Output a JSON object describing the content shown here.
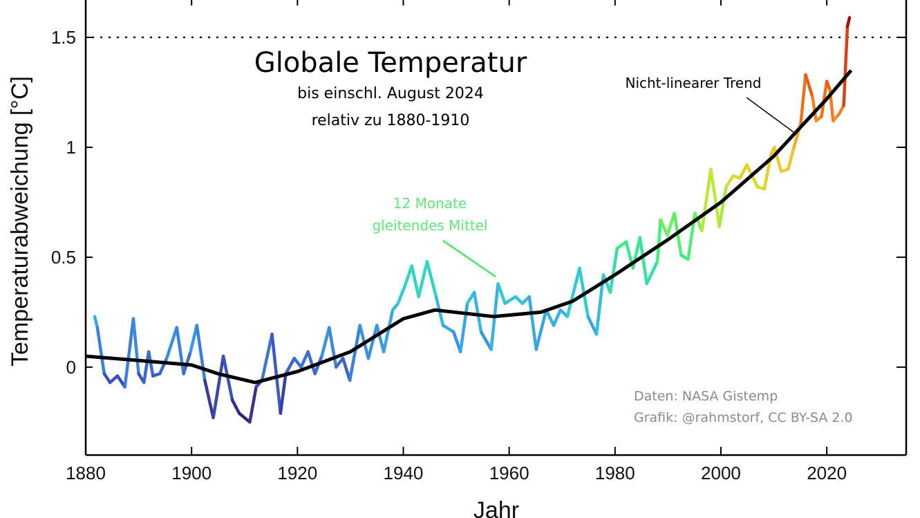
{
  "chart_data": {
    "type": "line",
    "title": "Globale Temperatur",
    "subtitle": [
      "bis einschl. August 2024",
      "relativ zu 1880-1910"
    ],
    "xlabel": "Jahr",
    "ylabel": "Temperaturabweichung [°C]",
    "xlim": [
      1880,
      2035
    ],
    "ylim": [
      -0.4,
      1.67
    ],
    "xticks": [
      1880,
      1900,
      1920,
      1940,
      1960,
      1980,
      2000,
      2020
    ],
    "yticks": [
      0,
      0.5,
      1,
      1.5
    ],
    "ytick_labels": [
      "0",
      "0.5",
      "1",
      "1.5"
    ],
    "grid": false,
    "reference_line": {
      "y": 1.5,
      "style": "dotted",
      "color": "#000000"
    },
    "colormap": [
      "#2b1a5a",
      "#3b4fc0",
      "#3a9fe8",
      "#2fd0d0",
      "#3ff07a",
      "#c8e830",
      "#f5c030",
      "#f07820",
      "#d83010",
      "#8a0a0a"
    ],
    "series": [
      {
        "name": "12 Monate gleitendes Mittel",
        "x": [
          1881.7,
          1882.2,
          1883.5,
          1884.6,
          1886,
          1887.4,
          1889,
          1890,
          1891,
          1891.9,
          1892.7,
          1894,
          1895.3,
          1897.2,
          1898.5,
          1899.8,
          1901,
          1902.5,
          1904.1,
          1906,
          1907.7,
          1909,
          1911,
          1912.2,
          1913.3,
          1915.2,
          1916.8,
          1917.8,
          1919.4,
          1920.7,
          1922,
          1923.3,
          1924.6,
          1926,
          1927.3,
          1928.6,
          1929.9,
          1931.8,
          1933.4,
          1935,
          1936.3,
          1938,
          1939,
          1940.3,
          1941.6,
          1942.9,
          1944.5,
          1946.2,
          1947.5,
          1949.5,
          1950.8,
          1952.1,
          1953.4,
          1954.7,
          1956.6,
          1957.9,
          1959.2,
          1961.2,
          1962.5,
          1963.8,
          1965.1,
          1967,
          1968.4,
          1969.7,
          1971,
          1973.3,
          1974.9,
          1976.5,
          1977.8,
          1979.1,
          1980.4,
          1982.1,
          1983.4,
          1984.7,
          1986,
          1988,
          1988.6,
          1989.9,
          1991.2,
          1992.5,
          1993.8,
          1995.1,
          1996.4,
          1998.1,
          1999.7,
          2001,
          2002.3,
          2003.6,
          2004.9,
          2006.9,
          2008.2,
          2009.5,
          2010.1,
          2011.4,
          2012.7,
          2013.8,
          2015.1,
          2016,
          2017.3,
          2018,
          2019,
          2020,
          2020.6,
          2021.2,
          2022.3,
          2023.2,
          2023.9,
          2024.3
        ],
        "values": [
          0.23,
          0.18,
          -0.03,
          -0.07,
          -0.04,
          -0.09,
          0.22,
          -0.03,
          -0.07,
          0.07,
          -0.04,
          -0.03,
          0.04,
          0.18,
          -0.03,
          0.07,
          0.19,
          -0.06,
          -0.23,
          0.05,
          -0.15,
          -0.21,
          -0.25,
          -0.09,
          -0.06,
          0.15,
          -0.21,
          -0.03,
          0.04,
          0.0,
          0.07,
          -0.03,
          0.05,
          0.18,
          0.0,
          0.04,
          -0.06,
          0.19,
          0.04,
          0.19,
          0.07,
          0.26,
          0.29,
          0.37,
          0.46,
          0.32,
          0.48,
          0.32,
          0.19,
          0.16,
          0.07,
          0.29,
          0.34,
          0.16,
          0.08,
          0.38,
          0.29,
          0.32,
          0.29,
          0.32,
          0.08,
          0.26,
          0.19,
          0.26,
          0.23,
          0.45,
          0.23,
          0.15,
          0.42,
          0.34,
          0.54,
          0.57,
          0.45,
          0.59,
          0.38,
          0.48,
          0.67,
          0.6,
          0.7,
          0.51,
          0.49,
          0.7,
          0.62,
          0.9,
          0.64,
          0.82,
          0.87,
          0.86,
          0.92,
          0.82,
          0.81,
          0.97,
          1.0,
          0.89,
          0.9,
          1.0,
          1.11,
          1.33,
          1.23,
          1.12,
          1.14,
          1.3,
          1.26,
          1.12,
          1.15,
          1.19,
          1.55,
          1.59
        ]
      },
      {
        "name": "Nicht-linearer Trend",
        "color": "#000000",
        "x": [
          1880,
          1890,
          1900,
          1905,
          1912,
          1920,
          1930,
          1940,
          1946,
          1957,
          1966,
          1972,
          1980,
          1990,
          2000,
          2010,
          2020,
          2024.6
        ],
        "values": [
          0.05,
          0.03,
          0.01,
          -0.03,
          -0.07,
          -0.02,
          0.07,
          0.22,
          0.26,
          0.23,
          0.25,
          0.3,
          0.42,
          0.58,
          0.75,
          0.96,
          1.22,
          1.35
        ]
      }
    ],
    "annotations": {
      "moving_avg_label": [
        "12 Monate",
        "gleitendes Mittel"
      ],
      "moving_avg_color": "#5ee87a",
      "trend_label": "Nicht-linearer Trend",
      "credit": [
        "Daten: NASA Gistemp",
        "Grafik: @rahmstorf, CC BY-SA 2.0"
      ],
      "credit_color": "#8a8a8a"
    }
  }
}
